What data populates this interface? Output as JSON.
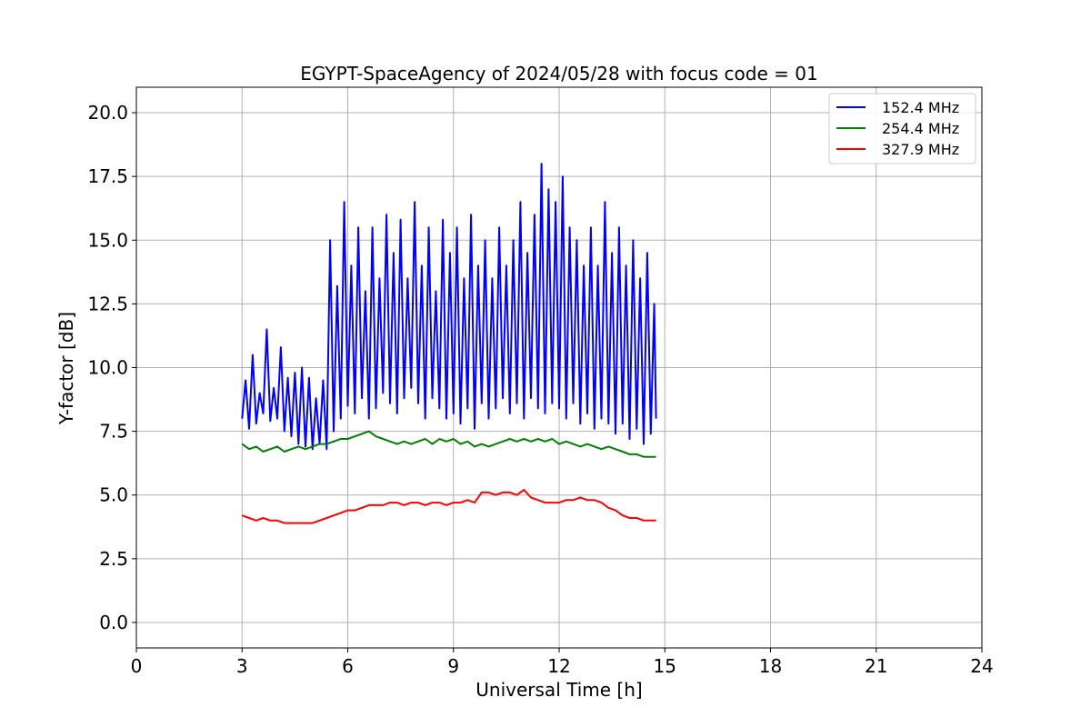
{
  "chart_data": {
    "type": "line",
    "title": "EGYPT-SpaceAgency of 2024/05/28 with focus code = 01",
    "xlabel": "Universal Time [h]",
    "ylabel": "Y-factor [dB]",
    "xlim": [
      0,
      24
    ],
    "ylim": [
      -1.0,
      21.0
    ],
    "xticks": [
      0,
      3,
      6,
      9,
      12,
      15,
      18,
      21,
      24
    ],
    "yticks": [
      0.0,
      2.5,
      5.0,
      7.5,
      10.0,
      12.5,
      15.0,
      17.5,
      20.0
    ],
    "xtick_labels": [
      "0",
      "3",
      "6",
      "9",
      "12",
      "15",
      "18",
      "21",
      "24"
    ],
    "ytick_labels": [
      "0.0",
      "2.5",
      "5.0",
      "7.5",
      "10.0",
      "12.5",
      "15.0",
      "17.5",
      "20.0"
    ],
    "grid": true,
    "legend_position": "top-right",
    "series": [
      {
        "name": "152.4 MHz",
        "color": "#0000ff",
        "points": [
          [
            3.0,
            8.0
          ],
          [
            3.1,
            9.5
          ],
          [
            3.2,
            7.6
          ],
          [
            3.3,
            10.5
          ],
          [
            3.4,
            7.8
          ],
          [
            3.5,
            9.0
          ],
          [
            3.6,
            8.2
          ],
          [
            3.7,
            11.5
          ],
          [
            3.8,
            7.9
          ],
          [
            3.9,
            9.2
          ],
          [
            4.0,
            8.0
          ],
          [
            4.1,
            10.8
          ],
          [
            4.2,
            7.5
          ],
          [
            4.3,
            9.6
          ],
          [
            4.4,
            7.3
          ],
          [
            4.5,
            9.8
          ],
          [
            4.6,
            7.0
          ],
          [
            4.7,
            10.0
          ],
          [
            4.8,
            6.9
          ],
          [
            4.9,
            9.6
          ],
          [
            5.0,
            6.8
          ],
          [
            5.1,
            8.8
          ],
          [
            5.2,
            7.0
          ],
          [
            5.3,
            9.5
          ],
          [
            5.4,
            6.8
          ],
          [
            5.5,
            15.0
          ],
          [
            5.6,
            7.5
          ],
          [
            5.7,
            13.2
          ],
          [
            5.8,
            8.0
          ],
          [
            5.9,
            16.5
          ],
          [
            6.0,
            8.5
          ],
          [
            6.1,
            14.0
          ],
          [
            6.2,
            8.2
          ],
          [
            6.3,
            15.5
          ],
          [
            6.4,
            8.8
          ],
          [
            6.5,
            13.0
          ],
          [
            6.6,
            8.0
          ],
          [
            6.7,
            15.5
          ],
          [
            6.8,
            8.4
          ],
          [
            6.9,
            13.5
          ],
          [
            7.0,
            9.0
          ],
          [
            7.1,
            16.0
          ],
          [
            7.2,
            8.6
          ],
          [
            7.3,
            14.5
          ],
          [
            7.4,
            8.2
          ],
          [
            7.5,
            15.8
          ],
          [
            7.6,
            8.8
          ],
          [
            7.7,
            13.5
          ],
          [
            7.8,
            9.2
          ],
          [
            7.9,
            16.5
          ],
          [
            8.0,
            8.6
          ],
          [
            8.1,
            14.0
          ],
          [
            8.2,
            8.0
          ],
          [
            8.3,
            15.5
          ],
          [
            8.4,
            8.8
          ],
          [
            8.5,
            13.0
          ],
          [
            8.6,
            8.4
          ],
          [
            8.7,
            15.8
          ],
          [
            8.8,
            8.0
          ],
          [
            8.9,
            14.5
          ],
          [
            9.0,
            8.2
          ],
          [
            9.1,
            15.5
          ],
          [
            9.2,
            7.8
          ],
          [
            9.3,
            13.5
          ],
          [
            9.4,
            8.4
          ],
          [
            9.5,
            16.0
          ],
          [
            9.6,
            7.6
          ],
          [
            9.7,
            14.0
          ],
          [
            9.8,
            8.6
          ],
          [
            9.9,
            15.0
          ],
          [
            10.0,
            8.0
          ],
          [
            10.1,
            13.5
          ],
          [
            10.2,
            8.4
          ],
          [
            10.3,
            15.5
          ],
          [
            10.4,
            8.8
          ],
          [
            10.5,
            14.0
          ],
          [
            10.6,
            8.2
          ],
          [
            10.7,
            15.0
          ],
          [
            10.8,
            8.6
          ],
          [
            10.9,
            16.5
          ],
          [
            11.0,
            8.0
          ],
          [
            11.1,
            14.5
          ],
          [
            11.2,
            8.8
          ],
          [
            11.3,
            16.0
          ],
          [
            11.4,
            8.4
          ],
          [
            11.5,
            18.0
          ],
          [
            11.6,
            8.2
          ],
          [
            11.7,
            17.0
          ],
          [
            11.8,
            8.6
          ],
          [
            11.9,
            16.5
          ],
          [
            12.0,
            8.4
          ],
          [
            12.1,
            17.5
          ],
          [
            12.2,
            8.0
          ],
          [
            12.3,
            15.5
          ],
          [
            12.4,
            8.6
          ],
          [
            12.5,
            15.0
          ],
          [
            12.6,
            7.8
          ],
          [
            12.7,
            14.0
          ],
          [
            12.8,
            8.2
          ],
          [
            12.9,
            15.5
          ],
          [
            13.0,
            7.6
          ],
          [
            13.1,
            14.0
          ],
          [
            13.2,
            8.0
          ],
          [
            13.3,
            16.5
          ],
          [
            13.4,
            7.8
          ],
          [
            13.5,
            14.5
          ],
          [
            13.6,
            7.4
          ],
          [
            13.7,
            15.5
          ],
          [
            13.8,
            7.8
          ],
          [
            13.9,
            14.0
          ],
          [
            14.0,
            7.2
          ],
          [
            14.1,
            15.0
          ],
          [
            14.2,
            7.6
          ],
          [
            14.3,
            13.5
          ],
          [
            14.4,
            7.0
          ],
          [
            14.5,
            14.5
          ],
          [
            14.6,
            7.4
          ],
          [
            14.7,
            12.5
          ],
          [
            14.75,
            8.0
          ]
        ]
      },
      {
        "name": "254.4 MHz",
        "color": "#008000",
        "points": [
          [
            3.0,
            7.0
          ],
          [
            3.2,
            6.8
          ],
          [
            3.4,
            6.9
          ],
          [
            3.6,
            6.7
          ],
          [
            3.8,
            6.8
          ],
          [
            4.0,
            6.9
          ],
          [
            4.2,
            6.7
          ],
          [
            4.4,
            6.8
          ],
          [
            4.6,
            6.9
          ],
          [
            4.8,
            6.8
          ],
          [
            5.0,
            6.9
          ],
          [
            5.2,
            7.0
          ],
          [
            5.4,
            7.0
          ],
          [
            5.6,
            7.1
          ],
          [
            5.8,
            7.2
          ],
          [
            6.0,
            7.2
          ],
          [
            6.2,
            7.3
          ],
          [
            6.4,
            7.4
          ],
          [
            6.6,
            7.5
          ],
          [
            6.8,
            7.3
          ],
          [
            7.0,
            7.2
          ],
          [
            7.2,
            7.1
          ],
          [
            7.4,
            7.0
          ],
          [
            7.6,
            7.1
          ],
          [
            7.8,
            7.0
          ],
          [
            8.0,
            7.1
          ],
          [
            8.2,
            7.2
          ],
          [
            8.4,
            7.0
          ],
          [
            8.6,
            7.2
          ],
          [
            8.8,
            7.1
          ],
          [
            9.0,
            7.2
          ],
          [
            9.2,
            7.0
          ],
          [
            9.4,
            7.1
          ],
          [
            9.6,
            6.9
          ],
          [
            9.8,
            7.0
          ],
          [
            10.0,
            6.9
          ],
          [
            10.2,
            7.0
          ],
          [
            10.4,
            7.1
          ],
          [
            10.6,
            7.2
          ],
          [
            10.8,
            7.1
          ],
          [
            11.0,
            7.2
          ],
          [
            11.2,
            7.1
          ],
          [
            11.4,
            7.2
          ],
          [
            11.6,
            7.1
          ],
          [
            11.8,
            7.2
          ],
          [
            12.0,
            7.0
          ],
          [
            12.2,
            7.1
          ],
          [
            12.4,
            7.0
          ],
          [
            12.6,
            6.9
          ],
          [
            12.8,
            7.0
          ],
          [
            13.0,
            6.9
          ],
          [
            13.2,
            6.8
          ],
          [
            13.4,
            6.9
          ],
          [
            13.6,
            6.8
          ],
          [
            13.8,
            6.7
          ],
          [
            14.0,
            6.6
          ],
          [
            14.2,
            6.6
          ],
          [
            14.4,
            6.5
          ],
          [
            14.6,
            6.5
          ],
          [
            14.75,
            6.5
          ]
        ]
      },
      {
        "name": "327.9 MHz",
        "color": "#ff0000",
        "points": [
          [
            3.0,
            4.2
          ],
          [
            3.2,
            4.1
          ],
          [
            3.4,
            4.0
          ],
          [
            3.6,
            4.1
          ],
          [
            3.8,
            4.0
          ],
          [
            4.0,
            4.0
          ],
          [
            4.2,
            3.9
          ],
          [
            4.4,
            3.9
          ],
          [
            4.6,
            3.9
          ],
          [
            4.8,
            3.9
          ],
          [
            5.0,
            3.9
          ],
          [
            5.2,
            4.0
          ],
          [
            5.4,
            4.1
          ],
          [
            5.6,
            4.2
          ],
          [
            5.8,
            4.3
          ],
          [
            6.0,
            4.4
          ],
          [
            6.2,
            4.4
          ],
          [
            6.4,
            4.5
          ],
          [
            6.6,
            4.6
          ],
          [
            6.8,
            4.6
          ],
          [
            7.0,
            4.6
          ],
          [
            7.2,
            4.7
          ],
          [
            7.4,
            4.7
          ],
          [
            7.6,
            4.6
          ],
          [
            7.8,
            4.7
          ],
          [
            8.0,
            4.7
          ],
          [
            8.2,
            4.6
          ],
          [
            8.4,
            4.7
          ],
          [
            8.6,
            4.7
          ],
          [
            8.8,
            4.6
          ],
          [
            9.0,
            4.7
          ],
          [
            9.2,
            4.7
          ],
          [
            9.4,
            4.8
          ],
          [
            9.6,
            4.7
          ],
          [
            9.8,
            5.1
          ],
          [
            10.0,
            5.1
          ],
          [
            10.2,
            5.0
          ],
          [
            10.4,
            5.1
          ],
          [
            10.6,
            5.1
          ],
          [
            10.8,
            5.0
          ],
          [
            11.0,
            5.2
          ],
          [
            11.2,
            4.9
          ],
          [
            11.4,
            4.8
          ],
          [
            11.6,
            4.7
          ],
          [
            11.8,
            4.7
          ],
          [
            12.0,
            4.7
          ],
          [
            12.2,
            4.8
          ],
          [
            12.4,
            4.8
          ],
          [
            12.6,
            4.9
          ],
          [
            12.8,
            4.8
          ],
          [
            13.0,
            4.8
          ],
          [
            13.2,
            4.7
          ],
          [
            13.4,
            4.5
          ],
          [
            13.6,
            4.4
          ],
          [
            13.8,
            4.2
          ],
          [
            14.0,
            4.1
          ],
          [
            14.2,
            4.1
          ],
          [
            14.4,
            4.0
          ],
          [
            14.6,
            4.0
          ],
          [
            14.75,
            4.0
          ]
        ]
      }
    ]
  }
}
